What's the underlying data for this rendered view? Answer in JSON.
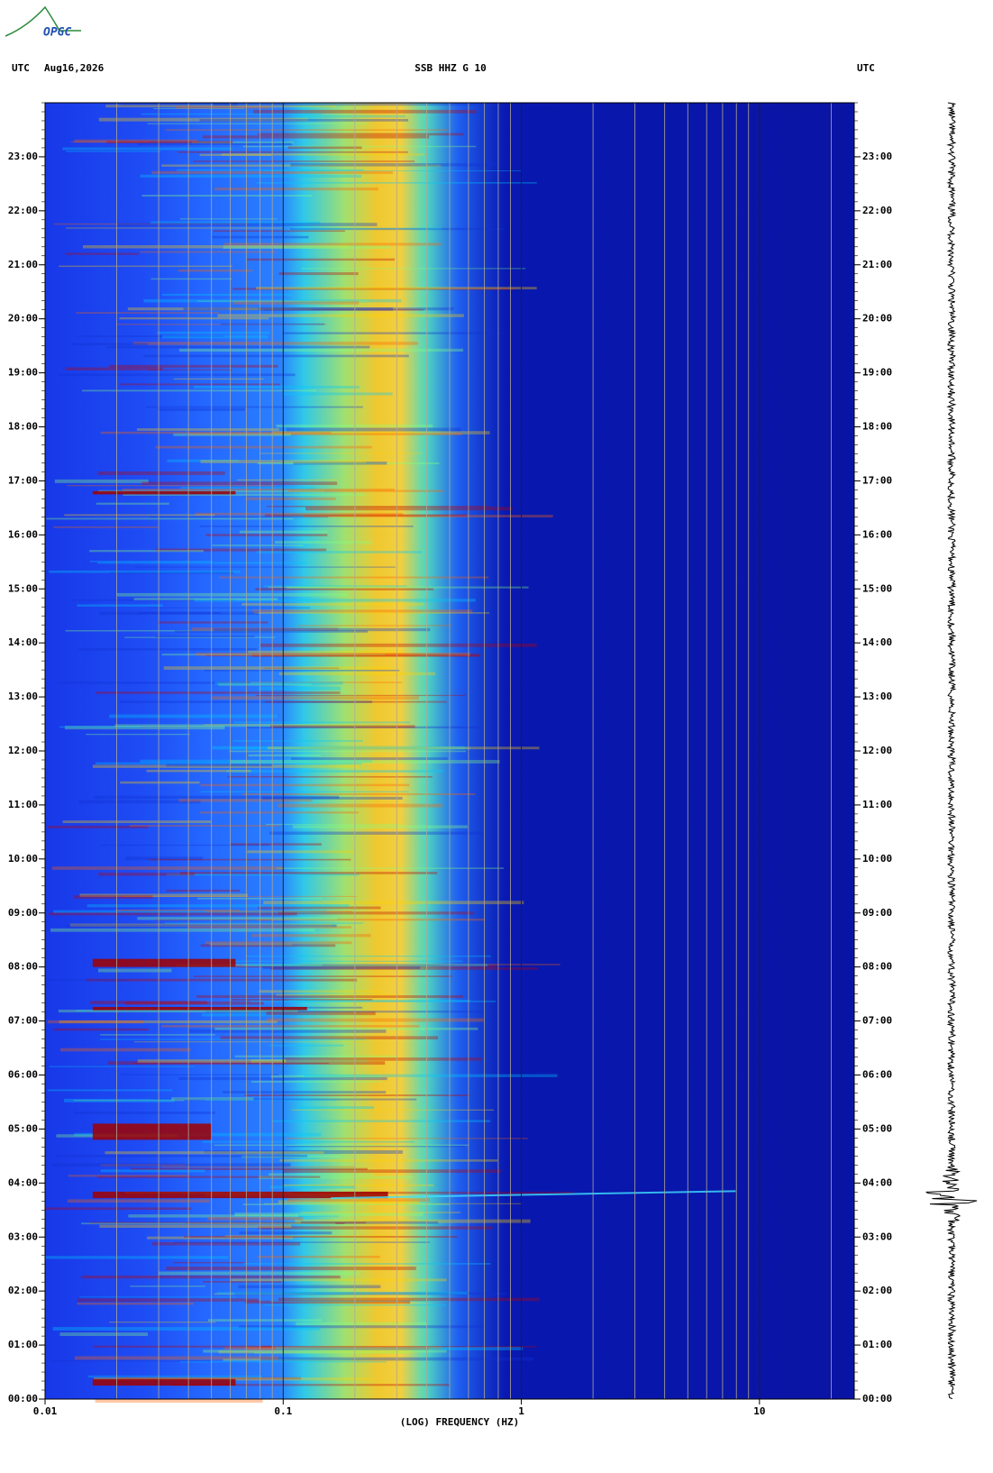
{
  "logo": "OPGC",
  "chart_data": {
    "type": "spectrogram",
    "header_left": "UTC",
    "date": "Aug16,2026",
    "title": "SSB HHZ G 10",
    "header_right": "UTC",
    "xlabel": "(LOG) FREQUENCY (HZ)",
    "xscale": "log",
    "xlim": [
      0.01,
      25
    ],
    "xticks": [
      0.01,
      0.1,
      1,
      10
    ],
    "ylim": [
      0,
      24
    ],
    "yticks": [
      {
        "value": 0,
        "label": "00:00"
      },
      {
        "value": 1,
        "label": "01:00"
      },
      {
        "value": 2,
        "label": "02:00"
      },
      {
        "value": 3,
        "label": "03:00"
      },
      {
        "value": 4,
        "label": "04:00"
      },
      {
        "value": 5,
        "label": "05:00"
      },
      {
        "value": 6,
        "label": "06:00"
      },
      {
        "value": 7,
        "label": "07:00"
      },
      {
        "value": 8,
        "label": "08:00"
      },
      {
        "value": 9,
        "label": "09:00"
      },
      {
        "value": 10,
        "label": "10:00"
      },
      {
        "value": 11,
        "label": "11:00"
      },
      {
        "value": 12,
        "label": "12:00"
      },
      {
        "value": 13,
        "label": "13:00"
      },
      {
        "value": 14,
        "label": "14:00"
      },
      {
        "value": 15,
        "label": "15:00"
      },
      {
        "value": 16,
        "label": "16:00"
      },
      {
        "value": 17,
        "label": "17:00"
      },
      {
        "value": 18,
        "label": "18:00"
      },
      {
        "value": 19,
        "label": "19:00"
      },
      {
        "value": 20,
        "label": "20:00"
      },
      {
        "value": 21,
        "label": "21:00"
      },
      {
        "value": 22,
        "label": "22:00"
      },
      {
        "value": 23,
        "label": "23:00"
      }
    ]
  }
}
